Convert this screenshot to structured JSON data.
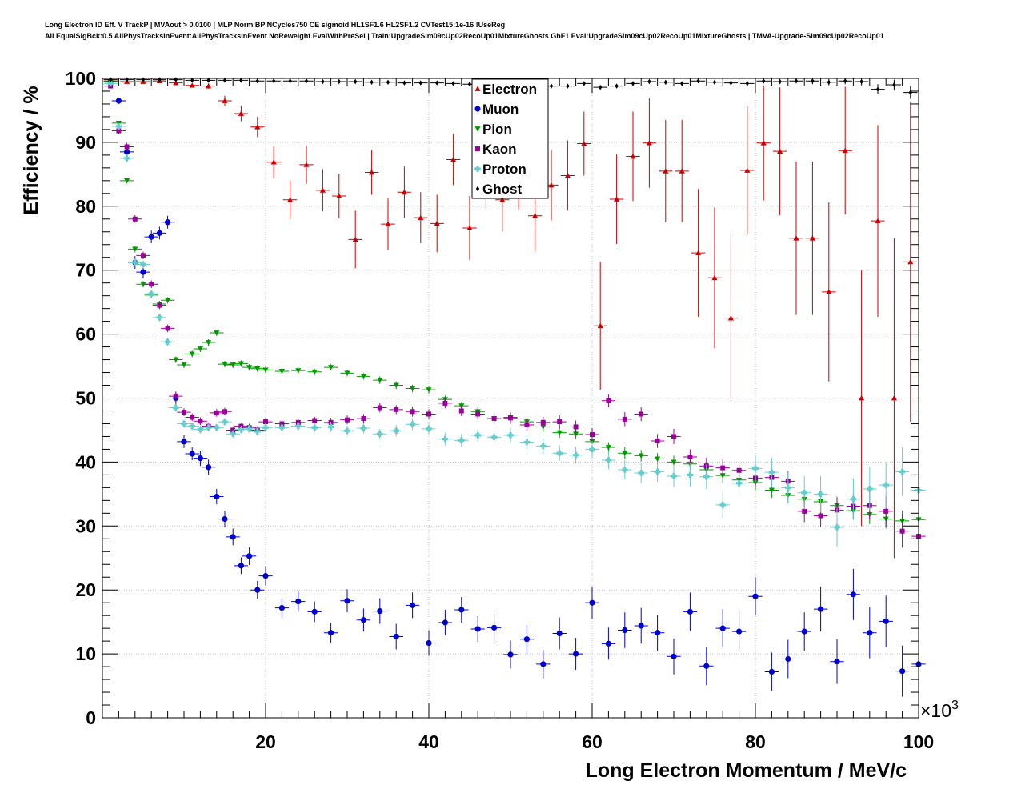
{
  "chart_data": {
    "type": "scatter",
    "title_line_1": "Long Electron ID Eff. V TrackP | MVAout > 0.0100 | MLP Norm BP NCycles750 CE sigmoid HL1SF1.6 HL2SF1.2 CVTest15:1e-16 !UseReg",
    "title_line_2": "All EqualSigBck:0.5 AllPhysTracksInEvent:AllPhysTracksInEvent NoReweight EvalWithPreSel | Train:UpgradeSim09cUp02RecoUp01MixtureGhosts GhF1 Eval:UpgradeSim09cUp02RecoUp01MixtureGhosts | TMVA-Upgrade-Sim09cUp02RecoUp01",
    "xlabel": "Long Electron Momentum / MeV/c",
    "ylabel": "Efficiency / %",
    "x_exponent_label": "×10",
    "x_exponent_power": "3",
    "xlim": [
      0,
      100
    ],
    "ylim": [
      0,
      100
    ],
    "x_ticks": [
      {
        "value": 20,
        "label": "20"
      },
      {
        "value": 40,
        "label": "40"
      },
      {
        "value": 60,
        "label": "60"
      },
      {
        "value": 80,
        "label": "80"
      },
      {
        "value": 100,
        "label": "100"
      }
    ],
    "y_ticks": [
      {
        "value": 0,
        "label": "0"
      },
      {
        "value": 10,
        "label": "10"
      },
      {
        "value": 20,
        "label": "20"
      },
      {
        "value": 30,
        "label": "30"
      },
      {
        "value": 40,
        "label": "40"
      },
      {
        "value": 50,
        "label": "50"
      },
      {
        "value": 60,
        "label": "60"
      },
      {
        "value": 70,
        "label": "70"
      },
      {
        "value": 80,
        "label": "80"
      },
      {
        "value": 90,
        "label": "90"
      },
      {
        "value": 100,
        "label": "100"
      }
    ],
    "grid": true,
    "legend_position": "top-center",
    "series": [
      {
        "name": "Electron",
        "color": "#cc0000",
        "marker": "triangle-up",
        "x": [
          1,
          3,
          5,
          7,
          9,
          11,
          13,
          15,
          17,
          19,
          21,
          23,
          25,
          27,
          29,
          31,
          33,
          35,
          37,
          39,
          41,
          43,
          45,
          47,
          49,
          51,
          53,
          55,
          57,
          59,
          61,
          63,
          65,
          67,
          69,
          71,
          73,
          75,
          77,
          79,
          81,
          83,
          85,
          87,
          89,
          91,
          93,
          95,
          97,
          99
        ],
        "y": [
          99.6,
          99.5,
          99.5,
          99.6,
          99.3,
          98.9,
          98.8,
          96.5,
          94.5,
          92.4,
          86.9,
          81,
          86.5,
          82.5,
          81.6,
          74.8,
          85.3,
          77.2,
          82.2,
          78.2,
          77.3,
          87.3,
          76.6,
          84,
          81,
          84.5,
          78.5,
          83.3,
          84.8,
          89.8,
          61.3,
          81.1,
          87.8,
          89.9,
          85.5,
          85.5,
          72.7,
          68.8,
          62.5,
          85.6,
          89.9,
          88.6,
          75,
          75,
          66.6,
          88.7,
          50,
          77.7,
          50,
          71.3
        ],
        "err": [
          0.1,
          0.1,
          0.1,
          0.1,
          0.2,
          0.3,
          0.4,
          0.8,
          1.2,
          1.6,
          2.5,
          3,
          3,
          3.3,
          3.5,
          4.5,
          3.5,
          4,
          4,
          4,
          4.5,
          4,
          5,
          4.5,
          5,
          5,
          5.5,
          5.5,
          5.5,
          5,
          10,
          7,
          7,
          7,
          8,
          8,
          10,
          11,
          13,
          10,
          9,
          10,
          12,
          12,
          14,
          10,
          20,
          15,
          25,
          25
        ]
      },
      {
        "name": "Muon",
        "color": "#0000cc",
        "marker": "circle",
        "x": [
          1,
          2,
          3,
          4,
          5,
          6,
          7,
          8,
          9,
          10,
          11,
          12,
          13,
          14,
          15,
          16,
          17,
          18,
          19,
          20,
          22,
          24,
          26,
          28,
          30,
          32,
          34,
          36,
          38,
          40,
          42,
          44,
          46,
          48,
          50,
          52,
          54,
          56,
          58,
          60,
          62,
          64,
          66,
          68,
          70,
          72,
          74,
          76,
          78,
          80,
          82,
          84,
          86,
          88,
          90,
          92,
          94,
          96,
          98,
          100
        ],
        "y": [
          99.5,
          96.5,
          88.5,
          71.2,
          69.7,
          75.2,
          75.8,
          77.5,
          50,
          43.2,
          41.3,
          40.6,
          39.2,
          34.6,
          31.1,
          28.3,
          23.8,
          25.3,
          20,
          22.2,
          17.2,
          18.2,
          16.6,
          13.3,
          18.3,
          15.3,
          16.7,
          12.7,
          17.6,
          11.7,
          14.9,
          16.9,
          13.9,
          14.1,
          9.9,
          12.3,
          8.4,
          13.2,
          10,
          18,
          11.6,
          13.7,
          14.4,
          13.3,
          9.6,
          16.6,
          8.1,
          14,
          13.5,
          19,
          7.2,
          9.2,
          13.5,
          17,
          8.8,
          19.3,
          13.3,
          15.1,
          7.3,
          8.4
        ],
        "err": [
          0.3,
          0.5,
          0.8,
          1,
          1,
          1,
          1,
          1,
          1,
          1,
          1,
          1.2,
          1.2,
          1.2,
          1.3,
          1.3,
          1.3,
          1.4,
          1.4,
          1.5,
          1.5,
          1.6,
          1.6,
          1.6,
          1.8,
          1.8,
          2,
          2,
          2,
          2,
          2,
          2,
          2,
          2.2,
          2.2,
          2.2,
          2.2,
          2.5,
          2.5,
          2.5,
          2.5,
          2.8,
          2.8,
          2.8,
          2.8,
          3,
          3,
          3,
          3,
          3,
          3,
          3,
          3,
          3.5,
          3.5,
          4,
          4,
          4,
          4,
          4
        ]
      },
      {
        "name": "Pion",
        "color": "#009900",
        "marker": "triangle-down",
        "x": [
          1,
          2,
          3,
          4,
          5,
          6,
          7,
          8,
          9,
          10,
          11,
          12,
          13,
          14,
          15,
          16,
          17,
          18,
          19,
          20,
          22,
          24,
          26,
          28,
          30,
          32,
          34,
          36,
          38,
          40,
          42,
          44,
          46,
          48,
          50,
          52,
          54,
          56,
          58,
          60,
          62,
          64,
          66,
          68,
          70,
          72,
          74,
          76,
          78,
          80,
          82,
          84,
          86,
          88,
          90,
          92,
          94,
          96,
          98,
          100
        ],
        "y": [
          99.5,
          93,
          84,
          73.3,
          67.8,
          66.1,
          64.7,
          65.3,
          56,
          55.2,
          56.9,
          57.7,
          58.7,
          60.2,
          55.3,
          55.2,
          55.4,
          54.8,
          54.6,
          54.4,
          54.2,
          54.3,
          54.1,
          54.8,
          53.9,
          53.4,
          52.8,
          52,
          51.5,
          51.3,
          49.8,
          48.8,
          47.9,
          46.8,
          47,
          46.3,
          45.5,
          44.6,
          44.4,
          43.2,
          42.3,
          41.4,
          41,
          40.5,
          40,
          39.7,
          38.8,
          37.9,
          37.2,
          36.8,
          35.6,
          34.8,
          34.2,
          33.8,
          33.2,
          32.4,
          31.8,
          31.1,
          30.8,
          31
        ],
        "err": [
          0.2,
          0.3,
          0.4,
          0.5,
          0.5,
          0.5,
          0.5,
          0.5,
          0.5,
          0.5,
          0.5,
          0.5,
          0.5,
          0.5,
          0.5,
          0.5,
          0.5,
          0.5,
          0.5,
          0.5,
          0.5,
          0.5,
          0.5,
          0.5,
          0.5,
          0.5,
          0.6,
          0.6,
          0.6,
          0.6,
          0.6,
          0.6,
          0.7,
          0.7,
          0.7,
          0.7,
          0.7,
          0.8,
          0.8,
          0.8,
          0.8,
          0.9,
          0.9,
          0.9,
          1,
          1,
          1,
          1.1,
          1.1,
          1.2,
          1.2,
          1.2,
          1.3,
          1.3,
          1.4,
          1.4,
          1.5,
          1.5,
          1.6,
          1.6
        ]
      },
      {
        "name": "Kaon",
        "color": "#990099",
        "marker": "square",
        "x": [
          1,
          2,
          3,
          4,
          5,
          6,
          7,
          8,
          9,
          10,
          11,
          12,
          13,
          14,
          15,
          16,
          17,
          18,
          19,
          20,
          22,
          24,
          26,
          28,
          30,
          32,
          34,
          36,
          38,
          40,
          42,
          44,
          46,
          48,
          50,
          52,
          54,
          56,
          58,
          60,
          62,
          64,
          66,
          68,
          70,
          72,
          74,
          76,
          78,
          80,
          82,
          84,
          86,
          88,
          90,
          92,
          94,
          96,
          98,
          100
        ],
        "y": [
          98.8,
          91.8,
          89.3,
          78,
          72.3,
          67.8,
          64.5,
          60.9,
          50.3,
          47.8,
          47,
          46.4,
          45.6,
          47.7,
          47.9,
          45,
          45.6,
          45.4,
          45,
          46.3,
          46,
          46.2,
          46.5,
          46.2,
          46.6,
          46.8,
          48.5,
          48.2,
          47.9,
          47.5,
          49.2,
          48,
          47.5,
          46.8,
          46.9,
          45.8,
          46.2,
          46.3,
          45.5,
          44.3,
          49.6,
          46.7,
          47.5,
          43.3,
          44,
          40.8,
          39.4,
          39.1,
          38.7,
          37.5,
          37.6,
          37,
          32.3,
          31.6,
          32.5,
          33.1,
          33.2,
          32.3,
          29.2,
          28.4
        ],
        "err": [
          0.3,
          0.5,
          0.6,
          0.6,
          0.6,
          0.6,
          0.6,
          0.6,
          0.6,
          0.6,
          0.6,
          0.6,
          0.6,
          0.6,
          0.6,
          0.6,
          0.6,
          0.6,
          0.6,
          0.6,
          0.6,
          0.6,
          0.6,
          0.7,
          0.7,
          0.7,
          0.7,
          0.7,
          0.8,
          0.8,
          0.8,
          0.8,
          0.8,
          0.9,
          0.9,
          0.9,
          0.9,
          1,
          1,
          1,
          1,
          1.1,
          1.1,
          1.1,
          1.2,
          1.2,
          1.3,
          1.3,
          1.4,
          1.4,
          1.5,
          1.6,
          1.7,
          1.8,
          1.9,
          2,
          2.2,
          2.4,
          2.6,
          2.8
        ]
      },
      {
        "name": "Proton",
        "color": "#66cccc",
        "marker": "cross",
        "x": [
          1,
          2,
          3,
          4,
          5,
          6,
          7,
          8,
          9,
          10,
          11,
          12,
          13,
          14,
          15,
          16,
          17,
          18,
          19,
          20,
          22,
          24,
          26,
          28,
          30,
          32,
          34,
          36,
          38,
          40,
          42,
          44,
          46,
          48,
          50,
          52,
          54,
          56,
          58,
          60,
          62,
          64,
          66,
          68,
          70,
          72,
          74,
          76,
          78,
          80,
          82,
          84,
          86,
          88,
          90,
          92,
          94,
          96,
          98,
          100
        ],
        "y": [
          99.2,
          92.5,
          87.5,
          71.2,
          70.9,
          66.3,
          62.6,
          58.8,
          48.5,
          46,
          45.6,
          45.1,
          45.4,
          45.4,
          46.3,
          44.4,
          45.1,
          45.2,
          44.8,
          45.4,
          45.4,
          45.6,
          45.4,
          45.5,
          44.9,
          45.3,
          44.4,
          44.9,
          45.9,
          45.2,
          43.6,
          43.4,
          44.2,
          43.9,
          44.2,
          43.1,
          42.5,
          41.4,
          41.1,
          42,
          40.3,
          38.8,
          38.3,
          38.5,
          37.8,
          38,
          37.7,
          33.3,
          36.7,
          39,
          38.4,
          36,
          35.2,
          35,
          29.8,
          34.2,
          35.8,
          36.4,
          38.5,
          35.6
        ],
        "err": [
          0.3,
          0.5,
          0.6,
          0.6,
          0.6,
          0.6,
          0.6,
          0.6,
          0.6,
          0.6,
          0.6,
          0.6,
          0.6,
          0.6,
          0.6,
          0.6,
          0.6,
          0.6,
          0.7,
          0.7,
          0.7,
          0.7,
          0.7,
          0.8,
          0.8,
          0.8,
          0.8,
          0.9,
          0.9,
          0.9,
          1,
          1,
          1,
          1,
          1.1,
          1.1,
          1.2,
          1.2,
          1.3,
          1.3,
          1.4,
          1.5,
          1.6,
          1.6,
          1.7,
          1.8,
          1.9,
          2,
          2.1,
          2.2,
          2.3,
          2.5,
          2.6,
          2.8,
          3,
          3.2,
          3.4,
          3.6,
          3.8,
          4
        ]
      },
      {
        "name": "Ghost",
        "color": "#000000",
        "marker": "diamond",
        "x": [
          1,
          3,
          5,
          7,
          9,
          11,
          13,
          15,
          17,
          19,
          21,
          23,
          25,
          27,
          29,
          31,
          33,
          35,
          37,
          39,
          41,
          43,
          45,
          47,
          49,
          51,
          53,
          55,
          57,
          59,
          61,
          63,
          65,
          67,
          69,
          71,
          73,
          75,
          77,
          79,
          81,
          83,
          85,
          87,
          89,
          91,
          93,
          95,
          97,
          99
        ],
        "y": [
          99.8,
          99.8,
          99.8,
          99.8,
          99.8,
          99.7,
          99.7,
          99.7,
          99.7,
          99.6,
          99.6,
          99.6,
          99.6,
          99.5,
          99.5,
          99.5,
          99.4,
          99.4,
          99.3,
          99.3,
          99.3,
          99.2,
          99.1,
          99.1,
          99,
          99,
          98.9,
          98.8,
          98.8,
          99.2,
          98.6,
          98.8,
          99.2,
          99.5,
          99.4,
          99.2,
          99.6,
          99.4,
          99.3,
          99.2,
          99.6,
          99.5,
          99.6,
          99.6,
          99.4,
          99.6,
          99.5,
          98.3,
          99,
          97.8
        ],
        "err": [
          0.05,
          0.05,
          0.05,
          0.05,
          0.05,
          0.05,
          0.05,
          0.05,
          0.05,
          0.05,
          0.05,
          0.05,
          0.05,
          0.05,
          0.05,
          0.05,
          0.1,
          0.1,
          0.1,
          0.1,
          0.1,
          0.1,
          0.1,
          0.1,
          0.1,
          0.1,
          0.2,
          0.2,
          0.2,
          0.2,
          0.3,
          0.3,
          0.3,
          0.3,
          0.3,
          0.3,
          0.3,
          0.3,
          0.4,
          0.4,
          0.4,
          0.4,
          0.4,
          0.5,
          0.5,
          0.5,
          0.6,
          0.8,
          0.8,
          1
        ]
      }
    ]
  }
}
